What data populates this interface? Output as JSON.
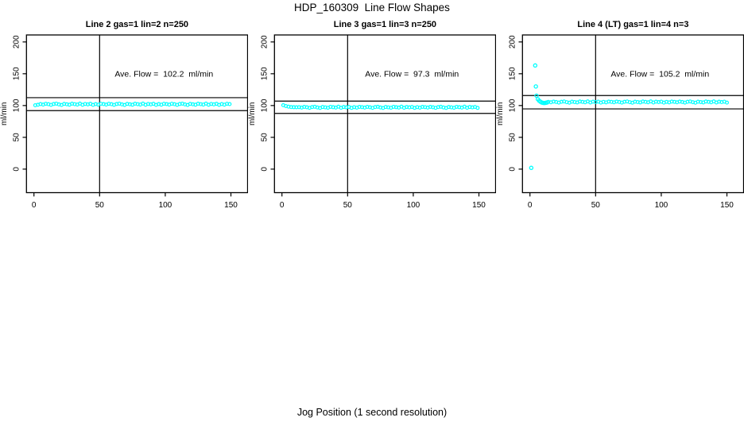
{
  "page": {
    "title": "HDP_160309  Line Flow Shapes",
    "xlabel": "Jog Position (1 second resolution)",
    "background": "#ffffff",
    "point_color": "#00ffff",
    "axis_color": "#000000"
  },
  "chart_data": [
    {
      "type": "scatter",
      "title": "Line 2 gas=1 lin=2 n=250",
      "ylabel": "ml/min",
      "annotation": "Ave. Flow =  102.2  ml/min",
      "ave_flow_ml_min": 102.2,
      "n": 250,
      "x_ticks": [
        0,
        50,
        100,
        150
      ],
      "y_ticks": [
        0,
        50,
        100,
        150,
        200
      ],
      "xlim": [
        -5.7,
        162.7
      ],
      "ylim": [
        -37,
        211
      ],
      "vline_x": 50,
      "hlines": [
        112.4,
        92.0
      ],
      "annotation_xy": [
        99,
        150
      ],
      "series": {
        "x0": 1,
        "dx": 2,
        "y": [
          100.5,
          101.2,
          102.3,
          101.5,
          102.8,
          102.1,
          101.1,
          102.4,
          103.0,
          101.8,
          100.9,
          102.6,
          102.0,
          101.3,
          102.9,
          102.2,
          101.6,
          103.1,
          101.2,
          102.5,
          101.9,
          102.7,
          101.0,
          102.3,
          101.4,
          102.8,
          102.3,
          101.5,
          102.8,
          102.1,
          101.1,
          102.4,
          103.0,
          101.8,
          100.9,
          102.6,
          102.0,
          101.3,
          102.9,
          102.2,
          101.6,
          103.1,
          101.2,
          102.5,
          101.9,
          102.7,
          101.0,
          102.3,
          101.4,
          102.8,
          102.3,
          101.5,
          102.8,
          102.1,
          101.1,
          102.4,
          103.0,
          101.8,
          100.9,
          102.6,
          102.0,
          101.3,
          102.9,
          102.2,
          101.6,
          103.1,
          101.2,
          102.5,
          101.9,
          102.7,
          101.0,
          102.3,
          101.4,
          102.8,
          102.3
        ]
      },
      "extra_points": []
    },
    {
      "type": "scatter",
      "title": "Line 3 gas=1 lin=3 n=250",
      "ylabel": "ml/min",
      "annotation": "Ave. Flow =  97.3  ml/min",
      "ave_flow_ml_min": 97.3,
      "n": 250,
      "x_ticks": [
        0,
        50,
        100,
        150
      ],
      "y_ticks": [
        0,
        50,
        100,
        150,
        200
      ],
      "xlim": [
        -5.7,
        162.7
      ],
      "ylim": [
        -37,
        211
      ],
      "vline_x": 50,
      "hlines": [
        107.0,
        87.6
      ],
      "annotation_xy": [
        99,
        150
      ],
      "series": {
        "x0": 1,
        "dx": 2,
        "y": [
          100.6,
          99.2,
          98.2,
          97.6,
          97.4,
          97.3,
          97.5,
          96.8,
          97.9,
          97.3,
          96.4,
          97.6,
          98.1,
          97.0,
          96.2,
          97.7,
          97.2,
          96.6,
          98.0,
          97.4,
          96.8,
          98.2,
          96.5,
          97.7,
          97.1,
          97.8,
          96.3,
          97.5,
          96.7,
          97.9,
          97.5,
          96.8,
          97.9,
          97.3,
          96.4,
          97.6,
          98.1,
          97.0,
          96.2,
          97.7,
          97.2,
          96.6,
          98.0,
          97.4,
          96.8,
          98.2,
          96.5,
          97.7,
          97.1,
          97.8,
          96.3,
          97.5,
          96.7,
          97.9,
          97.5,
          96.8,
          97.9,
          97.3,
          96.4,
          97.6,
          98.1,
          97.0,
          96.2,
          97.7,
          97.2,
          96.6,
          98.0,
          97.4,
          96.8,
          98.2,
          96.5,
          97.7,
          97.1,
          97.8,
          96.3
        ]
      },
      "extra_points": []
    },
    {
      "type": "scatter",
      "title": "Line 4 (LT) gas=1 lin=4 n=3",
      "ylabel": "ml/min",
      "annotation": "Ave. Flow =  105.2  ml/min",
      "ave_flow_ml_min": 105.2,
      "n": 3,
      "x_ticks": [
        0,
        50,
        100,
        150
      ],
      "y_ticks": [
        0,
        50,
        100,
        150,
        200
      ],
      "xlim": [
        -5.7,
        162.7
      ],
      "ylim": [
        -37,
        211
      ],
      "vline_x": 50,
      "hlines": [
        115.7,
        94.7
      ],
      "annotation_xy": [
        99,
        150
      ],
      "series": {
        "x0": 14,
        "dx": 2,
        "y": [
          105.8,
          105.1,
          106.2,
          105.6,
          104.7,
          105.9,
          106.4,
          105.3,
          104.5,
          106.0,
          105.5,
          104.9,
          106.3,
          105.7,
          105.1,
          106.5,
          104.8,
          106.0,
          105.4,
          106.1,
          104.6,
          105.8,
          105.0,
          106.2,
          105.8,
          105.1,
          106.2,
          105.6,
          104.7,
          105.9,
          106.4,
          105.3,
          104.5,
          106.0,
          105.5,
          104.9,
          106.3,
          105.7,
          105.1,
          106.5,
          104.8,
          106.0,
          105.4,
          106.1,
          104.6,
          105.8,
          105.0,
          106.2,
          105.8,
          105.1,
          106.2,
          105.6,
          104.7,
          105.9,
          106.4,
          105.3,
          104.5,
          106.0,
          105.5,
          104.9,
          106.3,
          105.7,
          105.1,
          106.5,
          104.8,
          106.0,
          105.4,
          106.1,
          104.6
        ]
      },
      "extra_points": [
        [
          1,
          2
        ],
        [
          4,
          163
        ],
        [
          4.5,
          130
        ],
        [
          5,
          115.5
        ],
        [
          6,
          110
        ],
        [
          7,
          107.5
        ],
        [
          8,
          106
        ],
        [
          9,
          104.8
        ],
        [
          10,
          104.2
        ],
        [
          11,
          104.0
        ],
        [
          12,
          104.3
        ],
        [
          13,
          104.8
        ]
      ]
    }
  ]
}
